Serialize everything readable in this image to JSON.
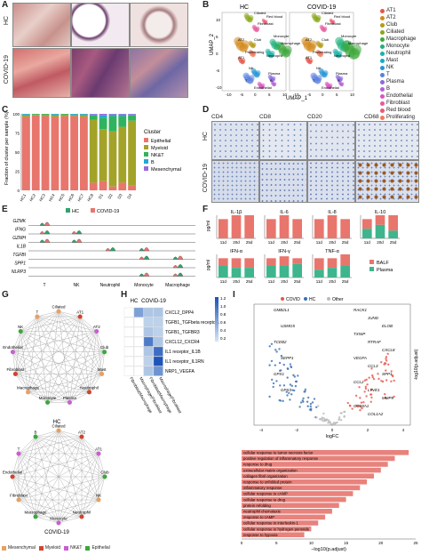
{
  "panels": {
    "A": "A",
    "B": "B",
    "C": "C",
    "D": "D",
    "E": "E",
    "F": "F",
    "G": "G",
    "H": "H",
    "I": "I"
  },
  "panel_a": {
    "row_labels": [
      "HC",
      "COVID-19"
    ]
  },
  "panel_b": {
    "titles": [
      "HC",
      "COVID-19"
    ],
    "xlabel": "UMAP_1",
    "ylabel": "UMAP_2",
    "xticks": [
      "-10",
      "-5",
      "0",
      "5",
      "10"
    ],
    "yticks": [
      "10",
      "5",
      "0",
      "-5",
      "-10"
    ],
    "cluster_labels": [
      "Ciliated",
      "Red blood",
      "Fibroblast",
      "AT2",
      "Club",
      "Proliferating",
      "Monocyte",
      "Macrophage",
      "Neutrophil",
      "AT1",
      "NK",
      "Plasma",
      "B",
      "Endothelial",
      "T"
    ],
    "legend": [
      {
        "name": "AT1",
        "color": "#e8554a"
      },
      {
        "name": "AT2",
        "color": "#d48a1d"
      },
      {
        "name": "Club",
        "color": "#b59a17"
      },
      {
        "name": "Ciliated",
        "color": "#8aa71c"
      },
      {
        "name": "Macrophage",
        "color": "#3ea83a"
      },
      {
        "name": "Monocyte",
        "color": "#1fb17a"
      },
      {
        "name": "Neutrophil",
        "color": "#19b3a8"
      },
      {
        "name": "Mast",
        "color": "#17a9c9"
      },
      {
        "name": "NK",
        "color": "#2596d6"
      },
      {
        "name": "T",
        "color": "#5a7fe0"
      },
      {
        "name": "Plasma",
        "color": "#8a69e0"
      },
      {
        "name": "B",
        "color": "#b55fd8"
      },
      {
        "name": "Endothelial",
        "color": "#d856c2"
      },
      {
        "name": "Fibroblast",
        "color": "#e65b9c"
      },
      {
        "name": "Red blood",
        "color": "#ea5b77"
      },
      {
        "name": "Proliferating",
        "color": "#f07b5c"
      }
    ]
  },
  "panel_c": {
    "ylabel": "Fraction of cluster per sample (%)",
    "yticks": [
      "100",
      "75",
      "50",
      "25",
      "0"
    ],
    "legend_title": "Cluster",
    "legend": [
      {
        "name": "Epithelial",
        "color": "#e8766d"
      },
      {
        "name": "Myeloid",
        "color": "#a3a32a"
      },
      {
        "name": "NK&T",
        "color": "#2fb35e"
      },
      {
        "name": "B",
        "color": "#21a8d8"
      },
      {
        "name": "Mesenchymal",
        "color": "#9a6ad9"
      }
    ]
  },
  "chart_data": [
    {
      "type": "bar",
      "title": "",
      "ylabel": "Fraction of cluster per sample (%)",
      "ylim": [
        0,
        100
      ],
      "categories": [
        "HC1",
        "HC2",
        "HC3",
        "HC4",
        "HC5",
        "HC6",
        "HC7",
        "HC8",
        "D1",
        "D2",
        "D3",
        "D4"
      ],
      "series": [
        {
          "name": "Epithelial",
          "values": [
            96,
            98,
            97,
            96,
            97,
            97,
            96,
            10,
            12,
            5,
            10,
            6
          ]
        },
        {
          "name": "Myeloid",
          "values": [
            2,
            1,
            2,
            2,
            2,
            1,
            2,
            82,
            68,
            72,
            73,
            85
          ]
        },
        {
          "name": "NK&T",
          "values": [
            1,
            1,
            1,
            1,
            1,
            1,
            1,
            6,
            15,
            20,
            14,
            7
          ]
        },
        {
          "name": "B",
          "values": [
            1,
            0,
            0,
            1,
            0,
            1,
            1,
            1,
            3,
            2,
            2,
            1
          ]
        },
        {
          "name": "Mesenchymal",
          "values": [
            0,
            0,
            0,
            0,
            0,
            0,
            0,
            1,
            2,
            1,
            1,
            1
          ]
        }
      ]
    },
    {
      "type": "bar",
      "title": "BALF vs Plasma cytokines",
      "ylabel": "pg/ml",
      "categories": [
        "11d",
        "20d",
        "25d"
      ],
      "subplots": [
        {
          "name": "IL-1β",
          "BALF": [
            10,
            12,
            12
          ],
          "Plasma": [
            0,
            0,
            0
          ]
        },
        {
          "name": "IL-6",
          "BALF": [
            10,
            12,
            10
          ],
          "Plasma": [
            0,
            0,
            0
          ]
        },
        {
          "name": "IL-8",
          "BALF": [
            10,
            12,
            10
          ],
          "Plasma": [
            0,
            0,
            0
          ]
        },
        {
          "name": "IL-10",
          "BALF": [
            10,
            12,
            12
          ],
          "Plasma": [
            5,
            7,
            4
          ]
        },
        {
          "name": "IFN-α",
          "BALF": [
            10,
            10,
            10
          ],
          "Plasma": [
            6,
            5,
            5
          ]
        },
        {
          "name": "IFN-γ",
          "BALF": [
            10,
            11,
            10
          ],
          "Plasma": [
            6,
            6,
            7
          ]
        },
        {
          "name": "TNF-α",
          "BALF": [
            10,
            10,
            12
          ],
          "Plasma": [
            4,
            5,
            6
          ]
        }
      ]
    }
  ],
  "panel_d": {
    "markers": [
      "CD4",
      "CD8",
      "CD20",
      "CD68"
    ],
    "row_labels": [
      "HC",
      "COVID-19"
    ]
  },
  "panel_e": {
    "legend": [
      {
        "name": "HC",
        "color": "#2fa36b"
      },
      {
        "name": "COVID-19",
        "color": "#e8766d"
      }
    ],
    "genes": [
      "GZMK",
      "IFNG",
      "GZMH",
      "IL1B",
      "TGFBI",
      "SPP1",
      "NLRP3"
    ],
    "cell_types": [
      "T",
      "NK",
      "Neutrophil",
      "Monocyte",
      "Macrophage"
    ]
  },
  "panel_f": {
    "ylabel": "pg/ml",
    "titles": [
      "IL-1β",
      "IL-6",
      "IL-8",
      "IL-10",
      "IFN-α",
      "IFN-γ",
      "TNF-α"
    ],
    "x_ticks": [
      "11d",
      "20d",
      "25d"
    ],
    "legend": [
      {
        "name": "BALF",
        "color": "#e8766d"
      },
      {
        "name": "Plasma",
        "color": "#3fb58d"
      }
    ]
  },
  "panel_g": {
    "top_label": "HC",
    "bottom_label": "COVID-19",
    "nodes_top": [
      "Ciliated",
      "AT1",
      "AT2",
      "Club",
      "Mast",
      "Neutrophil",
      "Plasma",
      "Monocyte",
      "Macrophage",
      "Fibroblast",
      "Endothelial",
      "NK",
      "T"
    ],
    "nodes_bottom": [
      "Ciliated",
      "AT2",
      "AT1",
      "Club",
      "NK",
      "Neutrophil",
      "Monocyte",
      "Macrophage",
      "Fibroblast",
      "Endothelial",
      "T",
      "B"
    ],
    "legend": [
      {
        "name": "Mesenchymal",
        "color": "#e8a060"
      },
      {
        "name": "Myeloid",
        "color": "#d1432e"
      },
      {
        "name": "NK&T",
        "color": "#c95ed0"
      },
      {
        "name": "Epithelial",
        "color": "#3aa83a"
      }
    ]
  },
  "panel_h": {
    "col_groups": [
      "HC",
      "COVID-19"
    ],
    "rows": [
      "CXCL2_DPP4",
      "TGFB1_TGFbeta receptor1",
      "TGFB1_TGFBR3",
      "CXCL12_CXCR4",
      "IL1 receptor_IL1B",
      "IL1 receptor_IL1RN",
      "NRP1_VEGFA"
    ],
    "cols": [
      "Fibroblast|Macrophage",
      "Macrophage|Fibroblast",
      "Fibroblast|Macrophage",
      "Macrophage|Fibroblast"
    ],
    "values": [
      [
        0.0,
        0.6,
        0.3,
        0.3
      ],
      [
        0.0,
        0.0,
        0.2,
        0.2
      ],
      [
        0.0,
        0.0,
        0.3,
        0.2
      ],
      [
        0.0,
        0.0,
        0.9,
        0.3
      ],
      [
        0.0,
        0.0,
        0.3,
        1.0
      ],
      [
        0.0,
        0.0,
        0.2,
        1.2
      ],
      [
        0.0,
        0.0,
        0.3,
        0.7
      ]
    ],
    "scale_ticks": [
      "1.2",
      "1.0",
      "0.8",
      "0.6",
      "0.4",
      "0.2"
    ]
  },
  "panel_i": {
    "legend": [
      {
        "name": "COVID",
        "color": "#e8554a"
      },
      {
        "name": "HC",
        "color": "#3a6fb0"
      },
      {
        "name": "Other",
        "color": "#bbbbbb"
      }
    ],
    "xlabel": "logFC",
    "ylabel": "-log10(p.adjust)",
    "xticks": [
      "-4",
      "-2",
      "0",
      "2",
      "4"
    ],
    "hc_genes": [
      "GMB2L1",
      "USMG5",
      "TCEB2",
      "SEPP1",
      "GPX1",
      "GPX3"
    ],
    "covid_genes": [
      "RACK1",
      "JUND",
      "ELOB",
      "TXNIP",
      "RTRAF",
      "CXCL8",
      "VEGFA",
      "CCL3",
      "SPP1",
      "CCL2",
      "LYVE1",
      "MMP9",
      "COL3A1",
      "COL1A2"
    ],
    "bar_xlabel": "−log10(p.adjust)",
    "bar_xticks": [
      "0",
      "5",
      "10",
      "15",
      "20",
      "25"
    ],
    "terms": [
      "cellular response to tumor necrosis factor",
      "positive regulation of inflammatory response",
      "response to drug",
      "extracellular matrix organization",
      "collagen fibril organization",
      "response to unfolded protein",
      "inflammatory response",
      "cellular response to cAMP",
      "cellular response to drug",
      "protein refolding",
      "neutrophil chemotaxis",
      "response to cAMP",
      "cellular response to interleukin-1",
      "cellular response to hydrogen peroxide",
      "response to hypoxia"
    ],
    "term_values": [
      24,
      22,
      21,
      20,
      19,
      18,
      17,
      16,
      15,
      14,
      13,
      12,
      11,
      10,
      9
    ]
  }
}
